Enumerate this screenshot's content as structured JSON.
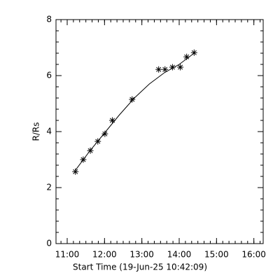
{
  "chart_data": {
    "type": "line",
    "xlabel": "Start Time (19-Jun-25 10:42:09)",
    "ylabel": "R/Rs",
    "series": [
      {
        "marker": "asterisk",
        "color": "#000000",
        "x": [
          11.22,
          11.43,
          11.62,
          11.82,
          12.01,
          12.21,
          12.74,
          13.45,
          13.62,
          13.82,
          14.03,
          14.2,
          14.4
        ],
        "values": [
          2.57,
          3.0,
          3.32,
          3.65,
          3.92,
          4.4,
          5.15,
          6.22,
          6.22,
          6.3,
          6.3,
          6.67,
          6.82
        ]
      },
      {
        "marker": "none",
        "color": "#000000",
        "x": [
          11.22,
          11.6,
          12.0,
          12.4,
          12.8,
          13.2,
          13.6,
          14.0,
          14.4
        ],
        "values": [
          2.62,
          3.3,
          3.95,
          4.6,
          5.2,
          5.7,
          6.1,
          6.4,
          6.8
        ]
      }
    ],
    "xlim": [
      10.7,
      16.25
    ],
    "xticks": [
      {
        "value": 11,
        "label": "11:00"
      },
      {
        "value": 12,
        "label": "12:00"
      },
      {
        "value": 13,
        "label": "13:00"
      },
      {
        "value": 14,
        "label": "14:00"
      },
      {
        "value": 15,
        "label": "15:00"
      },
      {
        "value": 16,
        "label": "16:00"
      }
    ],
    "ylim": [
      0,
      8
    ],
    "yticks": [
      0,
      2,
      4,
      6,
      8
    ]
  }
}
